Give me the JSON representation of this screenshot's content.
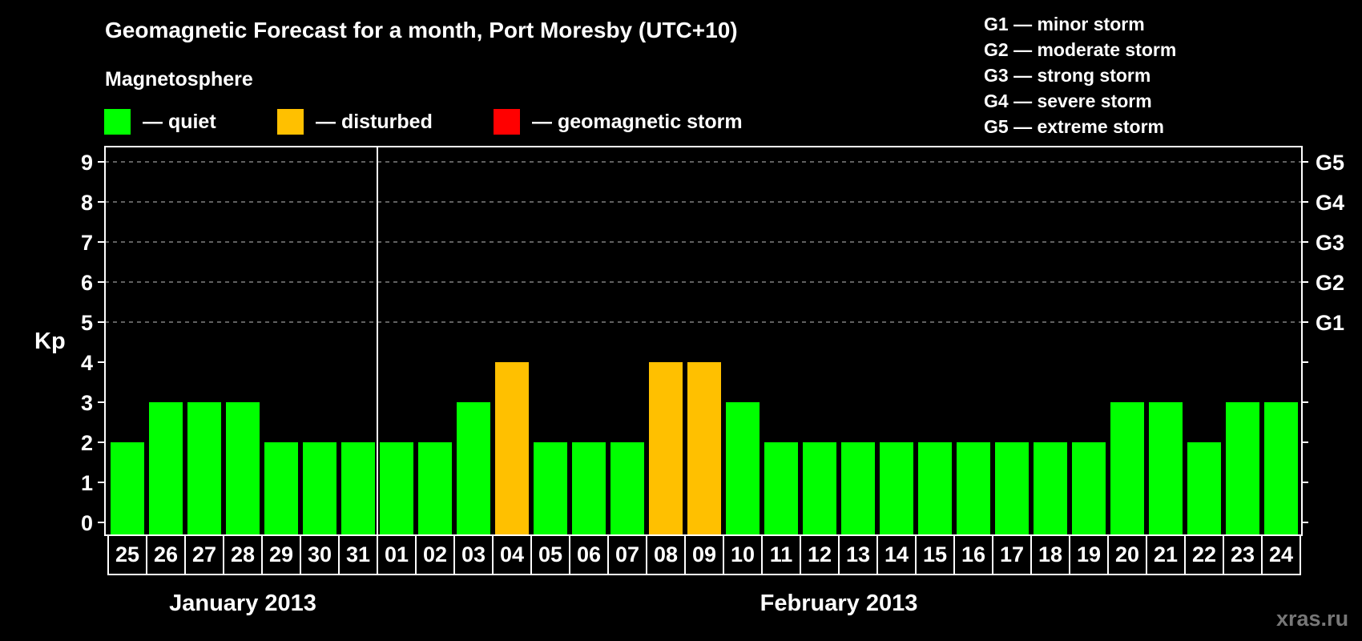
{
  "header": {
    "title": "Geomagnetic Forecast for a month, Port Moresby (UTC+10)",
    "magnetosphere_heading": "Magnetosphere"
  },
  "legend": [
    {
      "key": "quiet",
      "label": "— quiet",
      "color": "#00ff00"
    },
    {
      "key": "disturbed",
      "label": "— disturbed",
      "color": "#ffc000"
    },
    {
      "key": "storm",
      "label": "— geomagnetic storm",
      "color": "#ff0000"
    }
  ],
  "g_scale": [
    {
      "level": "G1",
      "text": "G1 — minor storm"
    },
    {
      "level": "G2",
      "text": "G2 — moderate storm"
    },
    {
      "level": "G3",
      "text": "G3 — strong storm"
    },
    {
      "level": "G4",
      "text": "G4 — severe storm"
    },
    {
      "level": "G5",
      "text": "G5 — extreme storm"
    }
  ],
  "axes": {
    "y_label": "Kp",
    "y_ticks": [
      "0",
      "1",
      "2",
      "3",
      "4",
      "5",
      "6",
      "7",
      "8",
      "9"
    ],
    "right_ticks": [
      {
        "kp": 5,
        "label": "G1"
      },
      {
        "kp": 6,
        "label": "G2"
      },
      {
        "kp": 7,
        "label": "G3"
      },
      {
        "kp": 8,
        "label": "G4"
      },
      {
        "kp": 9,
        "label": "G5"
      }
    ]
  },
  "months": [
    {
      "label": "January 2013",
      "start_index": 0,
      "count": 7
    },
    {
      "label": "February 2013",
      "start_index": 7,
      "count": 24
    }
  ],
  "watermark": "xras.ru",
  "colors": {
    "background": "#000000",
    "quiet": "#00ff00",
    "disturbed": "#ffc000",
    "storm": "#ff0000",
    "grid": "#999999",
    "axis": "#ffffff",
    "watermark": "#777777"
  },
  "chart_data": {
    "type": "bar",
    "title": "Geomagnetic Forecast for a month, Port Moresby (UTC+10)",
    "xlabel": "",
    "ylabel": "Kp",
    "ylim": [
      0,
      9
    ],
    "grid": "dashed horizontal lines at Kp 5-9",
    "legend_position": "top",
    "categories": [
      "25",
      "26",
      "27",
      "28",
      "29",
      "30",
      "31",
      "01",
      "02",
      "03",
      "04",
      "05",
      "06",
      "07",
      "08",
      "09",
      "10",
      "11",
      "12",
      "13",
      "14",
      "15",
      "16",
      "17",
      "18",
      "19",
      "20",
      "21",
      "22",
      "23",
      "24"
    ],
    "values": [
      2,
      3,
      3,
      3,
      2,
      2,
      2,
      2,
      2,
      3,
      4,
      2,
      2,
      2,
      4,
      4,
      3,
      2,
      2,
      2,
      2,
      2,
      2,
      2,
      2,
      2,
      3,
      3,
      2,
      3,
      3
    ],
    "status": [
      "quiet",
      "quiet",
      "quiet",
      "quiet",
      "quiet",
      "quiet",
      "quiet",
      "quiet",
      "quiet",
      "quiet",
      "disturbed",
      "quiet",
      "quiet",
      "quiet",
      "disturbed",
      "disturbed",
      "quiet",
      "quiet",
      "quiet",
      "quiet",
      "quiet",
      "quiet",
      "quiet",
      "quiet",
      "quiet",
      "quiet",
      "quiet",
      "quiet",
      "quiet",
      "quiet",
      "quiet"
    ],
    "month_groups": [
      {
        "label": "January 2013",
        "days": [
          "25",
          "26",
          "27",
          "28",
          "29",
          "30",
          "31"
        ]
      },
      {
        "label": "February 2013",
        "days": [
          "01",
          "02",
          "03",
          "04",
          "05",
          "06",
          "07",
          "08",
          "09",
          "10",
          "11",
          "12",
          "13",
          "14",
          "15",
          "16",
          "17",
          "18",
          "19",
          "20",
          "21",
          "22",
          "23",
          "24"
        ]
      }
    ],
    "right_axis": {
      "5": "G1",
      "6": "G2",
      "7": "G3",
      "8": "G4",
      "9": "G5"
    }
  }
}
